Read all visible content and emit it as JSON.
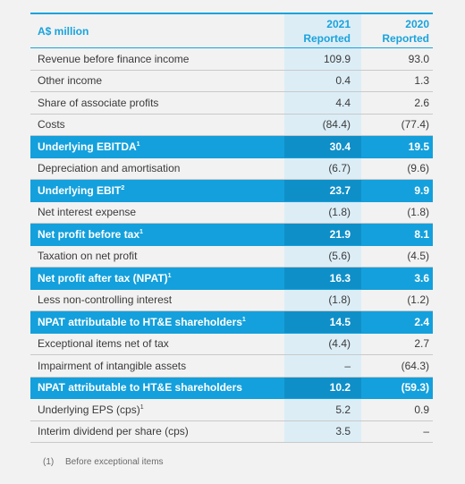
{
  "header": {
    "label": "A$ million",
    "col_a": [
      "2021",
      "Reported"
    ],
    "col_b": [
      "2020",
      "Reported"
    ]
  },
  "rows": [
    {
      "label": "Revenue before finance income",
      "sup": "",
      "a": "109.9",
      "b": "93.0",
      "hi": false
    },
    {
      "label": "Other income",
      "sup": "",
      "a": "0.4",
      "b": "1.3",
      "hi": false
    },
    {
      "label": "Share of associate profits",
      "sup": "",
      "a": "4.4",
      "b": "2.6",
      "hi": false
    },
    {
      "label": "Costs",
      "sup": "",
      "a": "(84.4)",
      "b": "(77.4)",
      "hi": false
    },
    {
      "label": "Underlying EBITDA",
      "sup": "1",
      "a": "30.4",
      "b": "19.5",
      "hi": true
    },
    {
      "label": "Depreciation and amortisation",
      "sup": "",
      "a": "(6.7)",
      "b": "(9.6)",
      "hi": false
    },
    {
      "label": "Underlying EBIT",
      "sup": "2",
      "a": "23.7",
      "b": "9.9",
      "hi": true
    },
    {
      "label": "Net interest expense",
      "sup": "",
      "a": "(1.8)",
      "b": "(1.8)",
      "hi": false
    },
    {
      "label": "Net profit before tax",
      "sup": "1",
      "a": "21.9",
      "b": "8.1",
      "hi": true
    },
    {
      "label": "Taxation on net profit",
      "sup": "",
      "a": "(5.6)",
      "b": "(4.5)",
      "hi": false
    },
    {
      "label": "Net profit after tax (NPAT)",
      "sup": "1",
      "a": "16.3",
      "b": "3.6",
      "hi": true
    },
    {
      "label": "Less non-controlling interest",
      "sup": "",
      "a": "(1.8)",
      "b": "(1.2)",
      "hi": false
    },
    {
      "label": "NPAT attributable to HT&E shareholders",
      "sup": "1",
      "a": "14.5",
      "b": "2.4",
      "hi": true
    },
    {
      "label": "Exceptional items net of tax",
      "sup": "",
      "a": "(4.4)",
      "b": "2.7",
      "hi": false
    },
    {
      "label": "Impairment of intangible assets",
      "sup": "",
      "a": "–",
      "b": "(64.3)",
      "hi": false
    },
    {
      "label": "NPAT attributable to HT&E shareholders",
      "sup": "",
      "a": "10.2",
      "b": "(59.3)",
      "hi": true
    },
    {
      "label": "Underlying EPS (cps)",
      "sup": "1",
      "a": "5.2",
      "b": "0.9",
      "hi": false
    },
    {
      "label": "Interim dividend per share (cps)",
      "sup": "",
      "a": "3.5",
      "b": "–",
      "hi": false
    }
  ],
  "footnote": {
    "num": "(1)",
    "text": "Before exceptional items"
  }
}
